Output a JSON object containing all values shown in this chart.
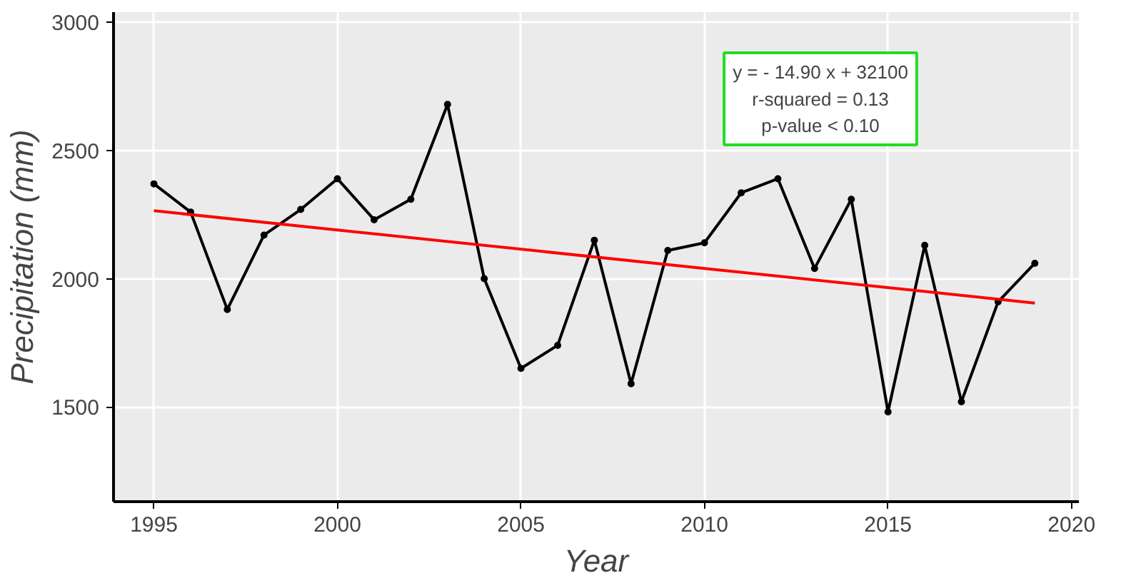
{
  "chart_data": {
    "type": "line",
    "xlabel": "Year",
    "ylabel": "Precipitation (mm)",
    "x": [
      1995,
      1996,
      1997,
      1998,
      1999,
      2000,
      2001,
      2002,
      2003,
      2004,
      2005,
      2006,
      2007,
      2008,
      2009,
      2010,
      2011,
      2012,
      2013,
      2014,
      2015,
      2016,
      2017,
      2018,
      2019
    ],
    "series": [
      {
        "color": "#000000",
        "marker": "circle",
        "values": [
          2370,
          2260,
          1880,
          2170,
          2270,
          2390,
          2230,
          2310,
          2680,
          2000,
          1650,
          1740,
          2150,
          1590,
          2110,
          2140,
          2335,
          2390,
          2040,
          2310,
          1480,
          2130,
          1520,
          1910,
          2060
        ]
      },
      {
        "color": "#ff0000",
        "marker": "none",
        "x": [
          1995,
          2019
        ],
        "values": [
          2265,
          1905
        ]
      }
    ],
    "xlim": [
      1993.9,
      2020.2
    ],
    "ylim": [
      1130,
      3040
    ],
    "xticks": [
      1995,
      2000,
      2005,
      2010,
      2015,
      2020
    ],
    "yticks": [
      1500,
      2000,
      2500,
      3000
    ],
    "grid": true,
    "annotations": [
      "y = - 14.90 x + 32100",
      "r-squared = 0.13",
      "p-value < 0.10"
    ]
  }
}
